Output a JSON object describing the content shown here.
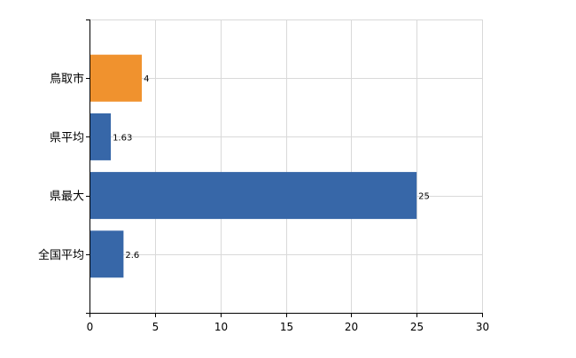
{
  "chart_data": {
    "type": "bar",
    "orientation": "horizontal",
    "categories": [
      "鳥取市",
      "県平均",
      "県最大",
      "全国平均"
    ],
    "values": [
      4,
      1.63,
      25,
      2.6
    ],
    "value_labels": [
      "4",
      "1.63",
      "25",
      "2.6"
    ],
    "bar_colors": [
      "#f0922e",
      "#3767a8",
      "#3767a8",
      "#3767a8"
    ],
    "highlight_color": "#f0922e",
    "default_color": "#3767a8",
    "xlim": [
      0,
      30
    ],
    "xticks": [
      0,
      5,
      10,
      15,
      20,
      25,
      30
    ],
    "xtick_labels": [
      "0",
      "5",
      "10",
      "15",
      "20",
      "25",
      "30"
    ],
    "grid": true,
    "title": "",
    "xlabel": "",
    "ylabel": ""
  }
}
